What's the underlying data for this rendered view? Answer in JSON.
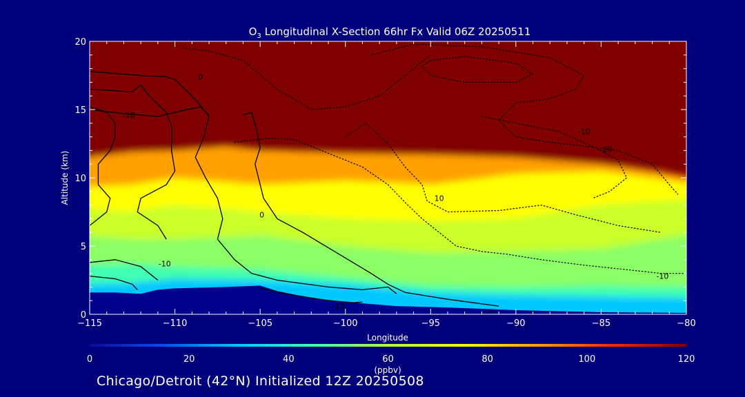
{
  "chart_data": {
    "type": "heatmap",
    "title_prefix": "O",
    "title_sub": "3",
    "title_rest": " Longitudinal X-Section 66hr  Fx Valid 06Z 20250511",
    "xlabel": "Longitude",
    "ylabel": "Altitude (km)",
    "xlim": [
      -115,
      -80
    ],
    "ylim": [
      0,
      20
    ],
    "xticks": [
      -115,
      -110,
      -105,
      -100,
      -95,
      -90,
      -85,
      -80
    ],
    "xtick_labels": [
      "−115",
      "−110",
      "−105",
      "−100",
      "−95",
      "−90",
      "−85",
      "−80"
    ],
    "yticks": [
      0,
      5,
      10,
      15,
      20
    ],
    "colorbar": {
      "min": 0,
      "max": 120,
      "ticks": [
        0,
        20,
        40,
        60,
        80,
        100,
        120
      ],
      "unit": "(ppbv)",
      "colors": [
        "#0a0a96",
        "#0050ff",
        "#00c8ff",
        "#40ffb0",
        "#b0ff40",
        "#ffff00",
        "#ffa000",
        "#ff2800",
        "#800000"
      ]
    },
    "ozone_layers": [
      {
        "ppbv": 30,
        "surface": [
          [
            -115,
            2.2
          ],
          [
            -112.5,
            2.3
          ],
          [
            -110,
            2.6
          ],
          [
            -105,
            2.5
          ],
          [
            -100,
            2.2
          ],
          [
            -95,
            1.6
          ],
          [
            -90,
            1.4
          ],
          [
            -85,
            1.3
          ],
          [
            -80,
            1.2
          ]
        ]
      },
      {
        "ppbv": 45,
        "surface": [
          [
            -115,
            3.6
          ],
          [
            -112.5,
            3.7
          ],
          [
            -110,
            3.5
          ],
          [
            -105,
            3.3
          ],
          [
            -100,
            2.7
          ],
          [
            -95,
            2.1
          ],
          [
            -90,
            2.0
          ],
          [
            -85,
            2.1
          ],
          [
            -80,
            2.0
          ]
        ]
      },
      {
        "ppbv": 55,
        "surface": [
          [
            -115,
            5.8
          ],
          [
            -112.5,
            5.5
          ],
          [
            -110,
            5.5
          ],
          [
            -105,
            5.8
          ],
          [
            -100,
            5.0
          ],
          [
            -95,
            4.5
          ],
          [
            -90,
            4.6
          ],
          [
            -85,
            4.8
          ],
          [
            -80,
            6.0
          ]
        ]
      },
      {
        "ppbv": 65,
        "surface": [
          [
            -115,
            7.8
          ],
          [
            -112.5,
            7.5
          ],
          [
            -110,
            8.0
          ],
          [
            -105,
            7.5
          ],
          [
            -100,
            7.0
          ],
          [
            -95,
            6.8
          ],
          [
            -90,
            7.0
          ],
          [
            -85,
            8.0
          ],
          [
            -80,
            8.5
          ]
        ]
      },
      {
        "ppbv": 75,
        "surface": [
          [
            -115,
            9.3
          ],
          [
            -112.5,
            9.5
          ],
          [
            -110,
            10.0
          ],
          [
            -105,
            9.5
          ],
          [
            -100,
            9.8
          ],
          [
            -95,
            9.5
          ],
          [
            -90,
            10.3
          ],
          [
            -85,
            10.5
          ],
          [
            -80,
            9.5
          ]
        ]
      },
      {
        "ppbv": 90,
        "surface": [
          [
            -115,
            11.4
          ],
          [
            -112.5,
            11.9
          ],
          [
            -110,
            12.0
          ],
          [
            -107,
            12.3
          ],
          [
            -105,
            12.0
          ],
          [
            -100,
            11.8
          ],
          [
            -95,
            11.7
          ],
          [
            -90,
            11.5
          ],
          [
            -85,
            11.0
          ],
          [
            -80,
            10.0
          ]
        ]
      },
      {
        "ppbv": 120,
        "surface": [
          [
            -115,
            12.0
          ],
          [
            -112.5,
            12.4
          ],
          [
            -110,
            12.5
          ],
          [
            -107,
            12.7
          ],
          [
            -105,
            12.4
          ],
          [
            -100,
            12.2
          ],
          [
            -95,
            12.2
          ],
          [
            -90,
            12.1
          ],
          [
            -85,
            11.7
          ],
          [
            -82,
            10.8
          ],
          [
            -80,
            9.8
          ]
        ]
      }
    ],
    "terrain": [
      [
        -115,
        1.6
      ],
      [
        -113.5,
        1.6
      ],
      [
        -112,
        1.5
      ],
      [
        -111,
        1.8
      ],
      [
        -110,
        1.9
      ],
      [
        -107,
        2.0
      ],
      [
        -105,
        2.1
      ],
      [
        -104,
        1.7
      ],
      [
        -102,
        1.2
      ],
      [
        -100,
        0.9
      ],
      [
        -97,
        0.6
      ],
      [
        -94,
        0.5
      ],
      [
        -90,
        0.3
      ],
      [
        -85,
        0.15
      ],
      [
        -80,
        0.1
      ]
    ],
    "contours": [
      {
        "label": "0",
        "style": "solid",
        "points": [
          [
            -115,
            17.8
          ],
          [
            -112,
            17.5
          ],
          [
            -110.5,
            17.4
          ],
          [
            -110,
            17.2
          ],
          [
            -109,
            16
          ],
          [
            -108.5,
            15.3
          ],
          [
            -108,
            14.5
          ],
          [
            -108.3,
            13
          ],
          [
            -108.8,
            11.5
          ],
          [
            -108.2,
            10
          ],
          [
            -107.5,
            8.5
          ],
          [
            -107.2,
            7
          ],
          [
            -107.5,
            5.5
          ],
          [
            -106.5,
            4
          ],
          [
            -105.5,
            3
          ],
          [
            -104,
            2.5
          ],
          [
            -101,
            2.0
          ],
          [
            -99,
            1.8
          ],
          [
            -97.5,
            2.0
          ],
          [
            -97,
            1.5
          ]
        ]
      },
      {
        "label": "0",
        "style": "solid",
        "points": [
          [
            -115,
            16.5
          ],
          [
            -112.5,
            16.3
          ],
          [
            -112,
            16.8
          ],
          [
            -111.5,
            16.0
          ],
          [
            -111,
            15.4
          ],
          [
            -110.5,
            14.8
          ],
          [
            -110.2,
            13.8
          ],
          [
            -110.2,
            12
          ],
          [
            -110,
            10.5
          ],
          [
            -110.5,
            9.5
          ],
          [
            -112,
            8.5
          ],
          [
            -112.2,
            7.5
          ],
          [
            -111,
            6.5
          ],
          [
            -110.5,
            5.5
          ]
        ]
      },
      {
        "label": "0",
        "style": "solid",
        "points": [
          [
            -115,
            15.2
          ],
          [
            -114,
            14.8
          ],
          [
            -113.5,
            14.0
          ],
          [
            -113.5,
            13.0
          ],
          [
            -113.8,
            12.0
          ],
          [
            -114.5,
            11.0
          ],
          [
            -114.5,
            9.5
          ],
          [
            -113.8,
            8.5
          ],
          [
            -114.0,
            7.5
          ],
          [
            -115,
            6.5
          ]
        ]
      },
      {
        "label": "0",
        "style": "solid",
        "points": [
          [
            -106,
            14.6
          ],
          [
            -105.5,
            14.8
          ],
          [
            -105.2,
            13.5
          ],
          [
            -105.0,
            12.2
          ],
          [
            -105.3,
            11.0
          ],
          [
            -105.1,
            10.0
          ],
          [
            -104.8,
            8.5
          ],
          [
            -104.0,
            7.0
          ],
          [
            -102.5,
            6.0
          ],
          [
            -100.5,
            4.5
          ],
          [
            -98.5,
            3.0
          ],
          [
            -97.5,
            2.2
          ],
          [
            -96.5,
            1.6
          ],
          [
            -94,
            1.1
          ],
          [
            -91,
            0.6
          ]
        ]
      },
      {
        "label": "-10",
        "style": "solid",
        "points": [
          [
            -115,
            15.0
          ],
          [
            -113,
            14.7
          ],
          [
            -111,
            14.5
          ],
          [
            -110,
            14.8
          ],
          [
            -108.5,
            15.2
          ],
          [
            -108,
            14.6
          ]
        ]
      },
      {
        "label": "-10",
        "style": "solid",
        "points": [
          [
            -115,
            3.8
          ],
          [
            -113.5,
            4.0
          ],
          [
            -112,
            3.5
          ],
          [
            -111.5,
            3.0
          ],
          [
            -111,
            2.5
          ]
        ]
      },
      {
        "label": "-10",
        "style": "solid",
        "points": [
          [
            -115,
            2.8
          ],
          [
            -113.5,
            2.6
          ],
          [
            -112.5,
            2.2
          ],
          [
            -112.2,
            1.8
          ]
        ]
      },
      {
        "label": "-10",
        "style": "solid",
        "points": [
          [
            -105,
            1.9
          ],
          [
            -103,
            1.4
          ],
          [
            -101,
            1.0
          ],
          [
            -99.5,
            0.85
          ],
          [
            -99,
            0.9
          ]
        ]
      },
      {
        "label": "-10",
        "style": "dotted",
        "points": [
          [
            -98.5,
            19
          ],
          [
            -96,
            19.8
          ],
          [
            -92,
            19.6
          ],
          [
            -88,
            18.8
          ],
          [
            -86,
            17.5
          ],
          [
            -86.5,
            16.5
          ],
          [
            -88,
            15.8
          ],
          [
            -90,
            15.5
          ],
          [
            -91,
            14.2
          ],
          [
            -90,
            13.0
          ],
          [
            -88,
            12.6
          ],
          [
            -86.5,
            12.4
          ],
          [
            -84,
            12.0
          ],
          [
            -82,
            11.0
          ],
          [
            -81,
            9.5
          ],
          [
            -80.5,
            8.8
          ]
        ]
      },
      {
        "label": "-10",
        "style": "dotted",
        "points": [
          [
            -95,
            18.6
          ],
          [
            -93,
            18.9
          ],
          [
            -90,
            18.4
          ],
          [
            -89,
            17.6
          ],
          [
            -90,
            17.0
          ],
          [
            -93,
            17.0
          ],
          [
            -95,
            17.5
          ],
          [
            -95.5,
            18.2
          ],
          [
            -95,
            18.6
          ]
        ]
      },
      {
        "label": "-20",
        "style": "dotted",
        "points": [
          [
            -92,
            14.5
          ],
          [
            -90,
            14.0
          ],
          [
            -87.5,
            13.4
          ],
          [
            -85.5,
            12.3
          ],
          [
            -84,
            11.3
          ],
          [
            -83.5,
            10.0
          ],
          [
            -84.5,
            9.0
          ],
          [
            -85.5,
            8.5
          ]
        ]
      },
      {
        "label": "10",
        "style": "dotted",
        "points": [
          [
            -106.5,
            12.6
          ],
          [
            -104.5,
            12.9
          ],
          [
            -103,
            12.8
          ],
          [
            -101,
            11.8
          ],
          [
            -99,
            10.8
          ],
          [
            -97.5,
            9.5
          ],
          [
            -96.5,
            8.2
          ],
          [
            -95.5,
            7.0
          ],
          [
            -94.5,
            6.0
          ],
          [
            -93.5,
            5.0
          ],
          [
            -92,
            4.6
          ],
          [
            -90.5,
            4.4
          ],
          [
            -88.5,
            4.0
          ],
          [
            -86,
            3.6
          ],
          [
            -83,
            3.2
          ],
          [
            -81.5,
            3.0
          ],
          [
            -80,
            3.0
          ]
        ]
      },
      {
        "label": "10",
        "style": "dotted",
        "points": [
          [
            -109.5,
            19.5
          ],
          [
            -108,
            19.3
          ],
          [
            -106,
            18.6
          ],
          [
            -104,
            16.5
          ],
          [
            -102,
            15.0
          ],
          [
            -100,
            15.2
          ],
          [
            -98,
            16.0
          ],
          [
            -96.5,
            17.5
          ],
          [
            -95,
            19.0
          ]
        ]
      },
      {
        "label": "10",
        "style": "dotted",
        "points": [
          [
            -100,
            13.0
          ],
          [
            -98.8,
            14.0
          ],
          [
            -97.5,
            12.5
          ],
          [
            -96.5,
            10.8
          ],
          [
            -95.5,
            9.5
          ],
          [
            -95.2,
            8.3
          ],
          [
            -94,
            7.5
          ],
          [
            -91,
            7.6
          ],
          [
            -88.5,
            8.0
          ],
          [
            -86.5,
            7.3
          ],
          [
            -84,
            6.5
          ],
          [
            -81.5,
            6.0
          ]
        ]
      }
    ],
    "contour_labels": [
      {
        "text": "0",
        "x": -108.5,
        "y": 17.4
      },
      {
        "text": "-10",
        "x": -112.7,
        "y": 14.6
      },
      {
        "text": "0",
        "x": -104.9,
        "y": 7.3
      },
      {
        "text": "-10",
        "x": -110.6,
        "y": 3.7
      },
      {
        "text": "-10",
        "x": -100.4,
        "y": 0.6
      },
      {
        "text": "0",
        "x": -91.5,
        "y": 0.1
      },
      {
        "text": "-10",
        "x": -86.0,
        "y": 13.4
      },
      {
        "text": "-20",
        "x": -84.7,
        "y": 12.1
      },
      {
        "text": "10",
        "x": -94.5,
        "y": 8.5
      },
      {
        "text": "-10",
        "x": -81.4,
        "y": 2.8
      }
    ]
  },
  "caption": "Chicago/Detroit (42°N) Initialized 12Z 20250508"
}
